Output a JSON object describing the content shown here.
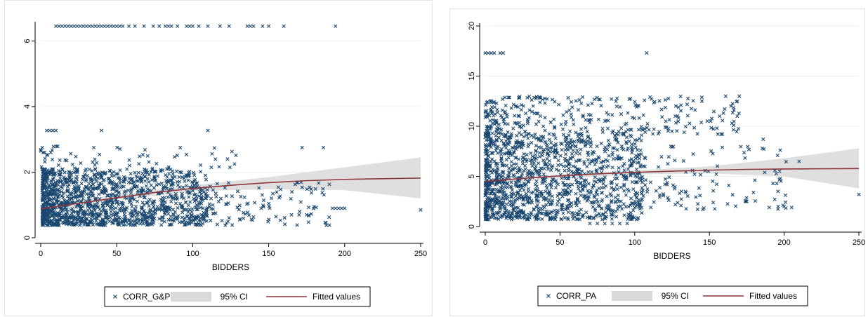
{
  "colors": {
    "marker": "#1a476f",
    "fit": "#90353b",
    "ci": "#d9d9d9",
    "grid": "#eaf2f3",
    "axis": "#000000"
  },
  "charts": [
    {
      "id": "left",
      "chart_data": {
        "type": "scatter",
        "xlabel": "BIDDERS",
        "ylabel": "",
        "xlim": [
          0,
          250
        ],
        "ylim": [
          0,
          6.5
        ],
        "xticks": [
          0,
          50,
          100,
          150,
          200,
          250
        ],
        "yticks": [
          0,
          2,
          4,
          6
        ],
        "grid": true,
        "legend_position": "bottom",
        "series": [
          {
            "name": "CORR_G&P",
            "kind": "scatter",
            "marker": "x",
            "bands": [
              {
                "x": [
                  1,
                  110
                ],
                "y": [
                  0.38,
                  2.1
                ],
                "n": 1400
              },
              {
                "x": [
                  100,
                  190
                ],
                "y": [
                  0.38,
                  1.7
                ],
                "n": 130
              },
              {
                "x": [
                  0,
                  140
                ],
                "y": [
                  2.1,
                  2.8
                ],
                "n": 60
              }
            ],
            "x": [
              10,
              12,
              14,
              16,
              18,
              20,
              22,
              24,
              26,
              28,
              30,
              32,
              34,
              36,
              38,
              40,
              42,
              44,
              46,
              48,
              50,
              52,
              54,
              58,
              62,
              68,
              74,
              78,
              82,
              84,
              86,
              90,
              96,
              98,
              100,
              104,
              110,
              118,
              124,
              136,
              138,
              140,
              146,
              150,
              160,
              194,
              1,
              4,
              6,
              8,
              10,
              40,
              110,
              165,
              170,
              172,
              175,
              186,
              192,
              194,
              196,
              198,
              200,
              250
            ],
            "y": [
              6.45,
              6.45,
              6.45,
              6.45,
              6.45,
              6.45,
              6.45,
              6.45,
              6.45,
              6.45,
              6.45,
              6.45,
              6.45,
              6.45,
              6.45,
              6.45,
              6.45,
              6.45,
              6.45,
              6.45,
              6.45,
              6.45,
              6.45,
              6.45,
              6.45,
              6.45,
              6.45,
              6.45,
              6.45,
              6.45,
              6.45,
              6.45,
              6.45,
              6.45,
              6.45,
              6.45,
              6.45,
              6.45,
              6.45,
              6.45,
              6.45,
              6.45,
              6.45,
              6.45,
              6.45,
              6.45,
              2.75,
              3.27,
              3.27,
              3.27,
              3.27,
              3.27,
              3.27,
              0.7,
              0.7,
              2.75,
              0.7,
              2.75,
              0.9,
              0.9,
              0.9,
              0.9,
              0.9,
              0.85
            ]
          },
          {
            "name": "95% CI",
            "kind": "band",
            "x": [
              0,
              50,
              100,
              150,
              200,
              250
            ],
            "lower": [
              0.78,
              1.15,
              1.42,
              1.48,
              1.45,
              1.2
            ],
            "upper": [
              0.98,
              1.32,
              1.6,
              1.85,
              2.15,
              2.45
            ]
          },
          {
            "name": "Fitted values",
            "kind": "line",
            "x": [
              0,
              25,
              50,
              75,
              100,
              125,
              150,
              175,
              200,
              225,
              250
            ],
            "y": [
              0.88,
              1.05,
              1.22,
              1.38,
              1.5,
              1.6,
              1.68,
              1.74,
              1.78,
              1.8,
              1.82
            ]
          }
        ]
      }
    },
    {
      "id": "right",
      "chart_data": {
        "type": "scatter",
        "xlabel": "BIDDERS",
        "ylabel": "",
        "xlim": [
          0,
          250
        ],
        "ylim": [
          0,
          20
        ],
        "xticks": [
          0,
          50,
          100,
          150,
          200,
          250
        ],
        "yticks": [
          0,
          5,
          10,
          15,
          20
        ],
        "grid": true,
        "legend_position": "bottom",
        "series": [
          {
            "name": "CORR_PA",
            "kind": "scatter",
            "marker": "x",
            "bands": [
              {
                "x": [
                  0,
                  105
                ],
                "y": [
                  0.7,
                  9.2
                ],
                "n": 1300
              },
              {
                "x": [
                  0,
                  170
                ],
                "y": [
                  9.2,
                  13.0
                ],
                "n": 320
              },
              {
                "x": [
                  100,
                  205
                ],
                "y": [
                  1.7,
                  8.0
                ],
                "n": 130
              }
            ],
            "x": [
              0,
              2,
              4,
              6,
              10,
              12,
              108,
              70,
              75,
              80,
              85,
              90,
              95,
              155,
              163,
              170,
              175,
              186,
              190,
              196,
              200,
              205,
              210,
              250,
              145,
              187
            ],
            "y": [
              17.3,
              17.3,
              17.3,
              17.3,
              17.3,
              17.3,
              17.3,
              0.3,
              0.3,
              0.3,
              0.3,
              0.3,
              0.3,
              9.8,
              4.1,
              13.0,
              2.5,
              8.7,
              1.9,
              2.0,
              2.0,
              1.9,
              6.5,
              3.2,
              12.5,
              5.4
            ]
          },
          {
            "name": "95% CI",
            "kind": "band",
            "x": [
              0,
              50,
              100,
              150,
              200,
              250
            ],
            "lower": [
              4.2,
              4.8,
              5.2,
              5.3,
              5.0,
              3.8
            ],
            "upper": [
              4.8,
              5.2,
              5.6,
              6.0,
              6.8,
              7.8
            ]
          },
          {
            "name": "Fitted values",
            "kind": "line",
            "x": [
              0,
              25,
              50,
              75,
              100,
              125,
              150,
              175,
              200,
              225,
              250
            ],
            "y": [
              4.5,
              4.8,
              5.05,
              5.25,
              5.4,
              5.52,
              5.62,
              5.7,
              5.74,
              5.76,
              5.78
            ]
          }
        ]
      }
    }
  ]
}
